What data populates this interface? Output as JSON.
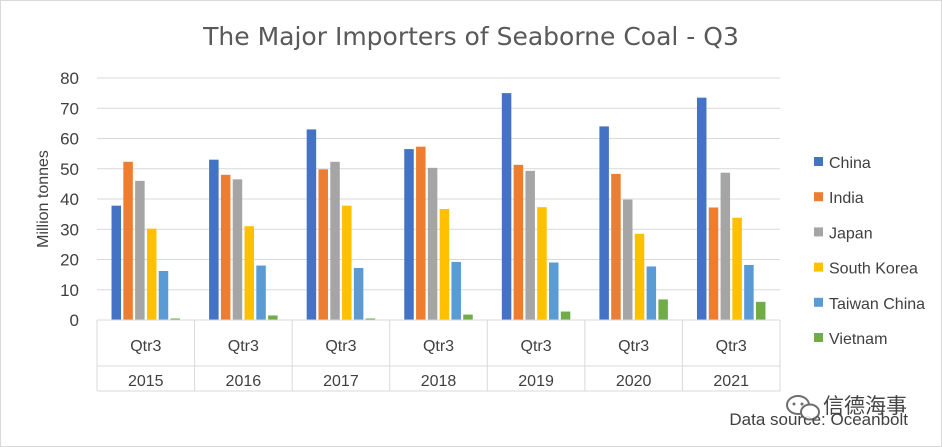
{
  "chart_data": {
    "type": "bar",
    "title": "The Major Importers of Seaborne Coal -  Q3",
    "ylabel": "Million tonnes",
    "xlabel": "",
    "ylim": [
      0,
      80
    ],
    "yticks": [
      0,
      10,
      20,
      30,
      40,
      50,
      60,
      70,
      80
    ],
    "grid": true,
    "legend_position": "right",
    "categories": [
      {
        "quarter": "Qtr3",
        "year": "2015"
      },
      {
        "quarter": "Qtr3",
        "year": "2016"
      },
      {
        "quarter": "Qtr3",
        "year": "2017"
      },
      {
        "quarter": "Qtr3",
        "year": "2018"
      },
      {
        "quarter": "Qtr3",
        "year": "2019"
      },
      {
        "quarter": "Qtr3",
        "year": "2020"
      },
      {
        "quarter": "Qtr3",
        "year": "2021"
      }
    ],
    "series": [
      {
        "name": "China",
        "color": "#4472c4",
        "values": [
          37.8,
          53,
          63,
          56.5,
          75,
          64,
          73.5
        ]
      },
      {
        "name": "India",
        "color": "#ed7d31",
        "values": [
          52.3,
          48,
          49.8,
          57.3,
          51.3,
          48.3,
          37.2
        ]
      },
      {
        "name": "Japan",
        "color": "#a5a5a5",
        "values": [
          46,
          46.5,
          52.3,
          50.3,
          49.3,
          39.8,
          48.7
        ]
      },
      {
        "name": "South Korea",
        "color": "#ffc000",
        "values": [
          30.2,
          31,
          37.8,
          36.7,
          37.3,
          28.5,
          33.8
        ]
      },
      {
        "name": "Taiwan China",
        "color": "#5b9bd5",
        "values": [
          16.2,
          18,
          17.2,
          19.2,
          19,
          17.7,
          18.2
        ]
      },
      {
        "name": "Vietnam",
        "color": "#70ad47",
        "values": [
          0.5,
          1.5,
          0.5,
          1.8,
          2.8,
          6.8,
          6
        ]
      }
    ]
  },
  "footer": {
    "source": "Data source: Oceanbolt",
    "watermark": "信德海事"
  }
}
